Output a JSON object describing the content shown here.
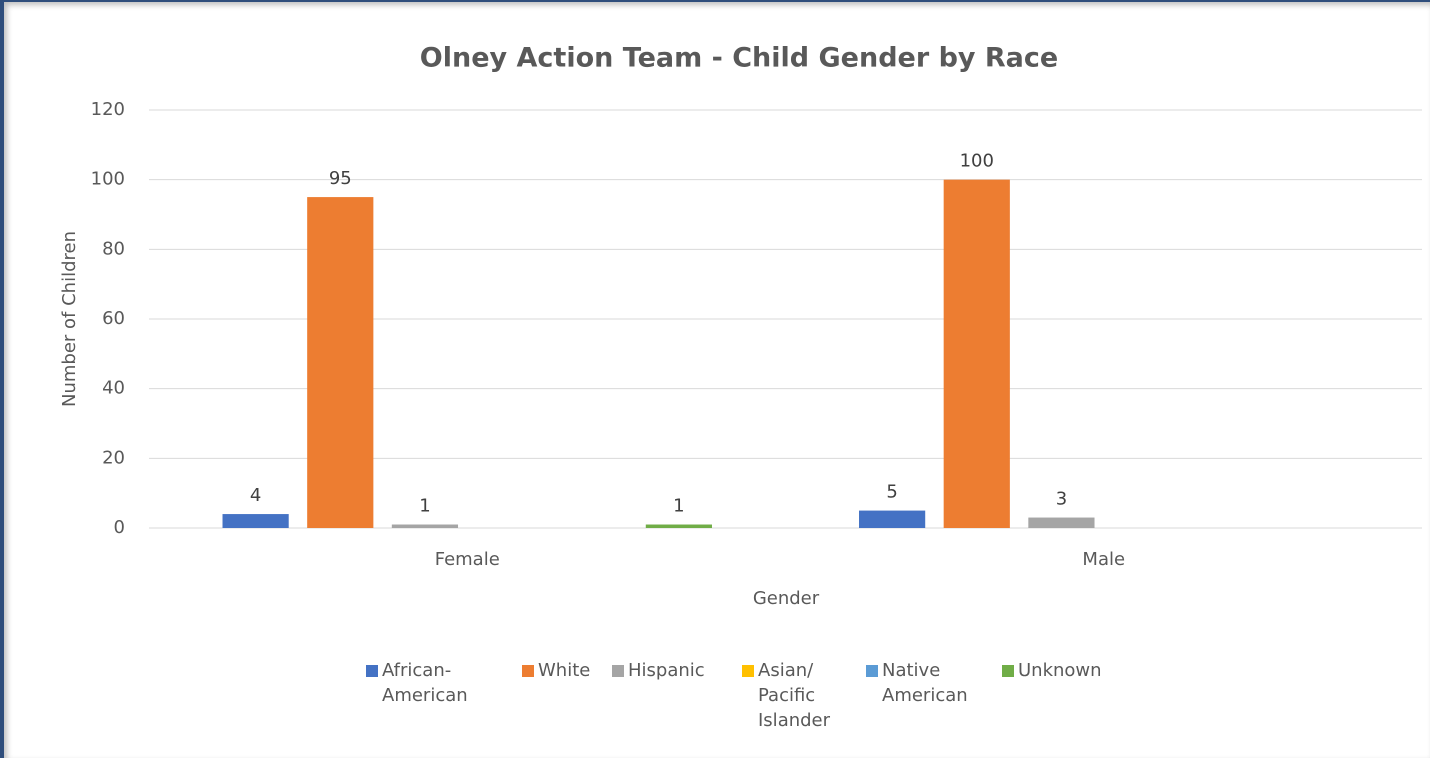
{
  "chart_data": {
    "type": "bar",
    "title": "Olney Action Team - Child Gender by Race",
    "x_label": "Gender",
    "y_label": "Number of Children",
    "categories": [
      "Female",
      "Male"
    ],
    "series": [
      {
        "name": "African-American",
        "color": "#4472c4",
        "values": [
          4,
          5
        ]
      },
      {
        "name": "White",
        "color": "#ed7d31",
        "values": [
          95,
          100
        ]
      },
      {
        "name": "Hispanic",
        "color": "#a5a5a5",
        "values": [
          1,
          3
        ]
      },
      {
        "name": "Asian/ Pacific Islander",
        "color": "#ffc000",
        "values": [
          null,
          null
        ]
      },
      {
        "name": "Native American",
        "color": "#5b9bd5",
        "values": [
          null,
          null
        ]
      },
      {
        "name": "Unknown",
        "color": "#70ad47",
        "values": [
          1,
          null
        ]
      }
    ],
    "ylim": [
      0,
      120
    ],
    "yticks": [
      0,
      20,
      40,
      60,
      80,
      100,
      120
    ],
    "grid": true,
    "legend": "bottom"
  }
}
